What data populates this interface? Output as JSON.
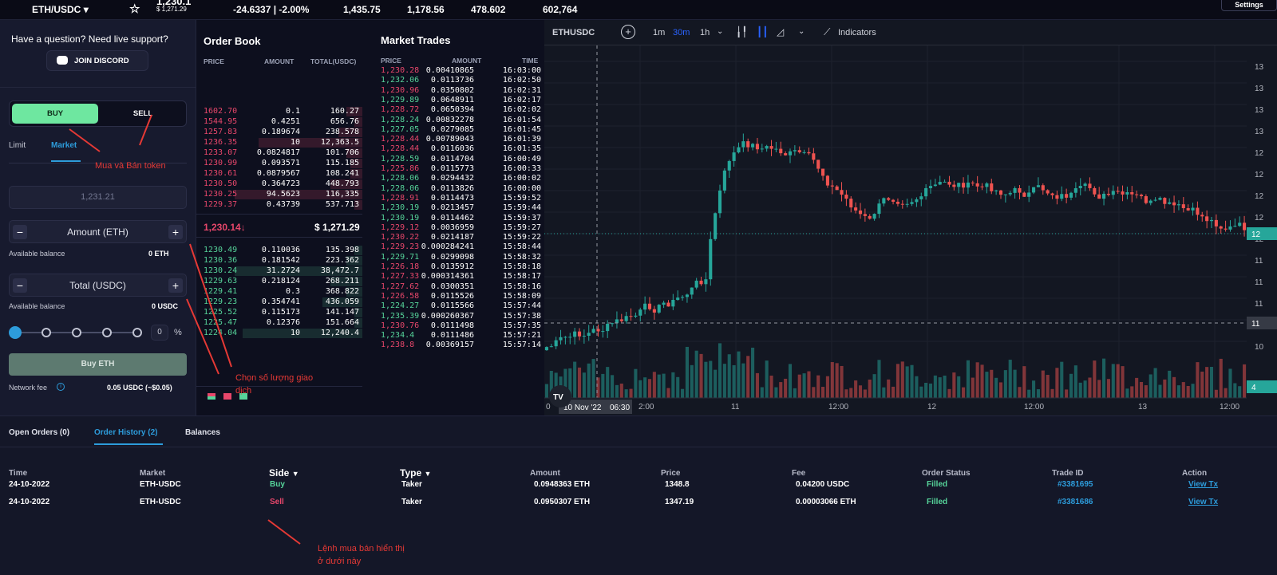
{
  "topbar": {
    "pair": "ETH/USDC",
    "price_partial": "1,230.1",
    "usd_price": "$ 1,271.29",
    "change": "-24.6337 | -2.00%",
    "stat1": "1,435.75",
    "stat2": "1,178.56",
    "stat3": "478.602",
    "stat4": "602,764",
    "settings": "Settings"
  },
  "left": {
    "question": "Have a question? Need live support?",
    "discord": "JOIN DISCORD",
    "buy": "BUY",
    "sell": "SELL",
    "tab_limit": "Limit",
    "tab_market": "Market",
    "price_value": "1,231.21",
    "amount_label": "Amount (ETH)",
    "avail1_label": "Available balance",
    "avail1_value": "0 ETH",
    "total_label": "Total (USDC)",
    "avail2_label": "Available balance",
    "avail2_value": "0 USDC",
    "percent_value": "0",
    "percent_sign": "%",
    "submit": "Buy ETH",
    "fee_label": "Network fee",
    "fee_value": "0.05 USDC (~$0.05)",
    "slider_level": 0
  },
  "orderbook": {
    "title": "Order Book",
    "col_price": "PRICE",
    "col_amount": "AMOUNT",
    "col_total": "TOTAL(USDC)",
    "asks": [
      [
        "1602.70",
        "0.1",
        "160.27"
      ],
      [
        "1544.95",
        "0.4251",
        "656.76"
      ],
      [
        "1257.83",
        "0.189674",
        "238.578"
      ],
      [
        "1236.35",
        "10",
        "12,363.5"
      ],
      [
        "1233.07",
        "0.0824817",
        "101.706"
      ],
      [
        "1230.99",
        "0.093571",
        "115.185"
      ],
      [
        "1230.61",
        "0.0879567",
        "108.241"
      ],
      [
        "1230.50",
        "0.364723",
        "448.793"
      ],
      [
        "1230.25",
        "94.5623",
        "116,335"
      ],
      [
        "1229.37",
        "0.43739",
        "537.713"
      ]
    ],
    "last": "1,230.14↓",
    "last_usd": "$ 1,271.29",
    "bids": [
      [
        "1230.49",
        "0.110036",
        "135.398"
      ],
      [
        "1230.36",
        "0.181542",
        "223.362"
      ],
      [
        "1230.24",
        "31.2724",
        "38,472.7"
      ],
      [
        "1229.63",
        "0.218124",
        "268.211"
      ],
      [
        "1229.41",
        "0.3",
        "368.822"
      ],
      [
        "1229.23",
        "0.354741",
        "436.059"
      ],
      [
        "1225.52",
        "0.115173",
        "141.147"
      ],
      [
        "1225.47",
        "0.12376",
        "151.664"
      ],
      [
        "1224.04",
        "10",
        "12,240.4"
      ]
    ]
  },
  "trades": {
    "title": "Market Trades",
    "col_price": "PRICE",
    "col_amount": "AMOUNT",
    "col_time": "TIME",
    "rows": [
      [
        "1,230.28",
        "0.00410865",
        "16:03:00",
        "r"
      ],
      [
        "1,232.06",
        "0.0113736",
        "16:02:50",
        "g"
      ],
      [
        "1,230.96",
        "0.0350802",
        "16:02:31",
        "r"
      ],
      [
        "1,229.89",
        "0.0648911",
        "16:02:17",
        "g"
      ],
      [
        "1,228.72",
        "0.0650394",
        "16:02:02",
        "r"
      ],
      [
        "1,228.24",
        "0.00832278",
        "16:01:54",
        "g"
      ],
      [
        "1,227.05",
        "0.0279085",
        "16:01:45",
        "g"
      ],
      [
        "1,228.44",
        "0.00789043",
        "16:01:39",
        "r"
      ],
      [
        "1,228.44",
        "0.0116036",
        "16:01:35",
        "r"
      ],
      [
        "1,228.59",
        "0.0114704",
        "16:00:49",
        "g"
      ],
      [
        "1,225.86",
        "0.0115773",
        "16:00:33",
        "r"
      ],
      [
        "1,228.06",
        "0.0294432",
        "16:00:02",
        "g"
      ],
      [
        "1,228.06",
        "0.0113826",
        "16:00:00",
        "g"
      ],
      [
        "1,228.91",
        "0.0114473",
        "15:59:52",
        "r"
      ],
      [
        "1,230.19",
        "0.0213457",
        "15:59:44",
        "g"
      ],
      [
        "1,230.19",
        "0.0114462",
        "15:59:37",
        "g"
      ],
      [
        "1,229.12",
        "0.0036959",
        "15:59:27",
        "r"
      ],
      [
        "1,230.22",
        "0.0214187",
        "15:59:22",
        "r"
      ],
      [
        "1,229.23",
        "0.000284241",
        "15:58:44",
        "r"
      ],
      [
        "1,229.71",
        "0.0299098",
        "15:58:32",
        "g"
      ],
      [
        "1,226.18",
        "0.0135912",
        "15:58:18",
        "r"
      ],
      [
        "1,227.33",
        "0.000314361",
        "15:58:17",
        "r"
      ],
      [
        "1,227.62",
        "0.0300351",
        "15:58:16",
        "r"
      ],
      [
        "1,226.58",
        "0.0115526",
        "15:58:09",
        "r"
      ],
      [
        "1,224.27",
        "0.0115566",
        "15:57:44",
        "g"
      ],
      [
        "1,235.39",
        "0.000260367",
        "15:57:38",
        "g"
      ],
      [
        "1,230.76",
        "0.0111498",
        "15:57:35",
        "r"
      ],
      [
        "1,234.4",
        "0.0111486",
        "15:57:21",
        "g"
      ],
      [
        "1,238.8",
        "0.00369157",
        "15:57:14",
        "r"
      ]
    ]
  },
  "chart": {
    "symbol": "ETHUSDC",
    "tf": [
      "1m",
      "30m",
      "1h"
    ],
    "indicators": "Indicators",
    "xlabels": [
      "0",
      "11",
      "12:00",
      "12",
      "12:00",
      "13",
      "12:00"
    ],
    "date_label": "10 Nov '22",
    "time_label": "06:30",
    "ylabels": [
      "13",
      "13",
      "13",
      "13",
      "12",
      "12",
      "12",
      "12",
      "12",
      "11",
      "11",
      "11",
      "11",
      "10"
    ],
    "price_tag": "12",
    "crosshair_tag": "11",
    "bottom_tag": "4",
    "tv_logo": "TV",
    "x_partial": "2:00"
  },
  "chart_data": {
    "type": "candlestick",
    "note_free": true
  },
  "bottom": {
    "tabs": [
      "Open Orders (0)",
      "Order History (2)",
      "Balances"
    ],
    "headers": [
      "Time",
      "Market",
      "Side",
      "Type",
      "Amount",
      "Price",
      "Fee",
      "Order Status",
      "Trade ID",
      "Action"
    ],
    "rows": [
      [
        "24-10-2022",
        "ETH-USDC",
        "Buy",
        "Taker",
        "0.0948363 ETH",
        "1348.8",
        "0.04200 USDC",
        "Filled",
        "#3381695",
        "View Tx"
      ],
      [
        "24-10-2022",
        "ETH-USDC",
        "Sell",
        "Taker",
        "0.0950307 ETH",
        "1347.19",
        "0.00003066 ETH",
        "Filled",
        "#3381686",
        "View Tx"
      ]
    ]
  },
  "annotations": {
    "a1": "Mua và Bán token",
    "a2": "Chọn số lượng giao",
    "a2b": "dịch",
    "a3": "Lệnh mua bán hiển thị",
    "a3b": "ở dưới này"
  },
  "colors": {
    "green": "#56d49a",
    "red": "#e8476b",
    "accent": "#2d9cdb",
    "buy_bg": "#6ee7a0"
  }
}
